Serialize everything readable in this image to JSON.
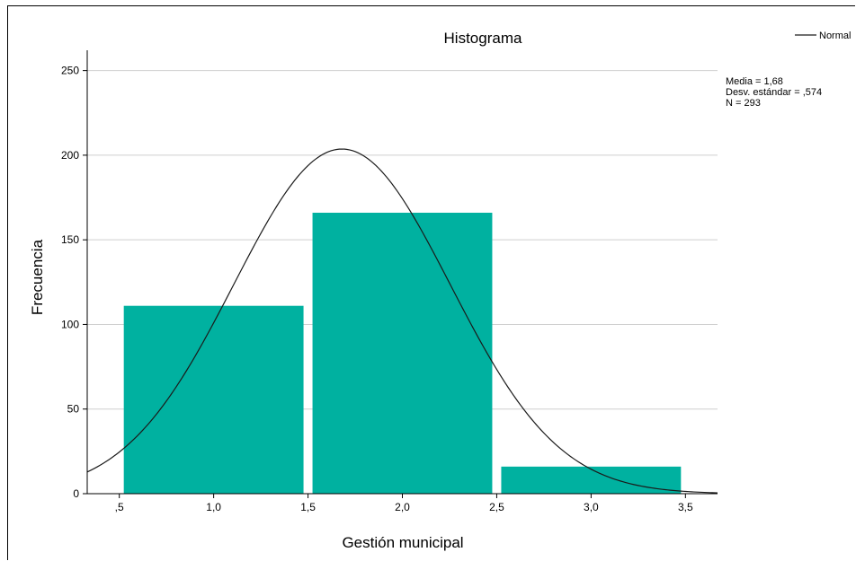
{
  "chart_data": {
    "type": "bar",
    "title": "Histograma",
    "xlabel": "Gestión municipal",
    "ylabel": "Frecuencia",
    "bins": [
      {
        "from": 0.5,
        "to": 1.5,
        "value": 111
      },
      {
        "from": 1.5,
        "to": 2.5,
        "value": 166
      },
      {
        "from": 2.5,
        "to": 3.5,
        "value": 16
      }
    ],
    "xlim": [
      0.33,
      3.67
    ],
    "ylim": [
      0,
      262
    ],
    "x_ticks": [
      0.5,
      1.0,
      1.5,
      2.0,
      2.5,
      3.0,
      3.5
    ],
    "x_tick_labels": [
      ",5",
      "1,0",
      "1,5",
      "2,0",
      "2,5",
      "3,0",
      "3,5"
    ],
    "y_ticks": [
      0,
      50,
      100,
      150,
      200,
      250
    ],
    "y_tick_labels": [
      "0",
      "50",
      "100",
      "150",
      "200",
      "250"
    ],
    "grid": "horizontal",
    "bar_color": "#00b1a0",
    "normal_curve": {
      "mean": 1.68,
      "sd": 0.574,
      "n": 293,
      "bin_width": 1.0,
      "color": "#1a1a1a"
    },
    "stats": [
      "Media = 1,68",
      "Desv. estándar = ,574",
      "N = 293"
    ],
    "legend": {
      "label": "Normal",
      "placement": "top-right"
    }
  }
}
